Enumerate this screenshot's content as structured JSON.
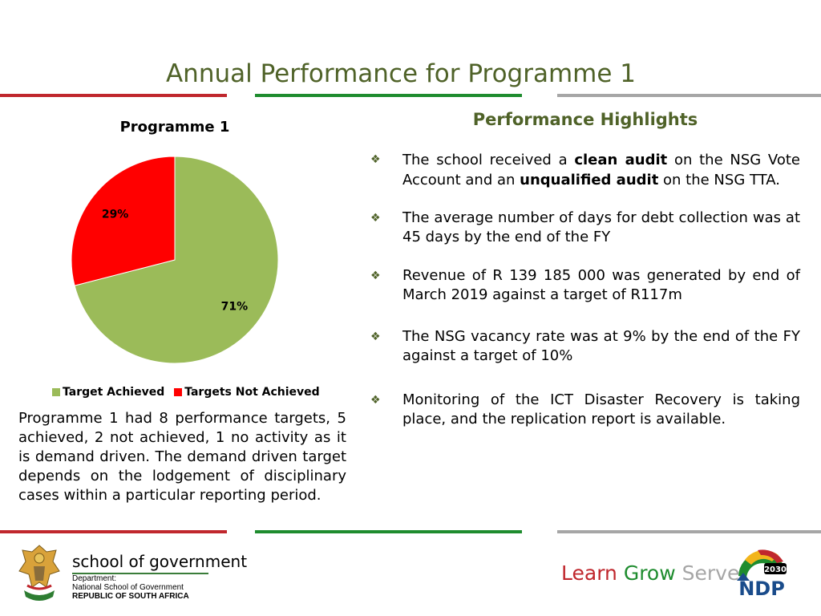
{
  "slide": {
    "title": "Annual Performance for Programme 1"
  },
  "colors": {
    "title": "#4f6228",
    "bar_red": "#c0272d",
    "bar_green": "#1e8c2e",
    "bar_gray": "#a6a6a6",
    "achieved": "#9bbb59",
    "not_achieved": "#ff0000"
  },
  "chart_data": {
    "type": "pie",
    "title": "Programme 1",
    "categories": [
      "Target Achieved",
      "Targets Not Achieved"
    ],
    "values": [
      71,
      29
    ],
    "labels": [
      "71%",
      "29%"
    ],
    "colors": [
      "#9bbb59",
      "#ff0000"
    ],
    "legend": "bottom"
  },
  "summary": "Programme 1 had 8 performance targets, 5 achieved, 2 not achieved, 1 no activity as it is demand driven. The demand driven target depends on the lodgement of disciplinary cases within a particular reporting period.",
  "highlights": {
    "title": "Performance Highlights",
    "items": [
      {
        "parts": [
          [
            "The school received a ",
            false
          ],
          [
            "clean audit",
            true
          ],
          [
            " on the NSG Vote Account and an ",
            false
          ],
          [
            "unqualified audit",
            true
          ],
          [
            " on the NSG TTA.",
            false
          ]
        ]
      },
      {
        "parts": [
          [
            "The average number of days for debt collection was at 45 days by the end of the FY",
            false
          ]
        ]
      },
      {
        "parts": [
          [
            "Revenue of R 139 185 000 was generated by end of March 2019 against a target of R117m",
            false
          ]
        ]
      },
      {
        "parts": [
          [
            "The NSG vacancy rate was at 9% by the end of the FY against a target of 10%",
            false
          ]
        ]
      },
      {
        "parts": [
          [
            "Monitoring of the ICT Disaster Recovery is taking place, and the replication report is available.",
            false
          ]
        ]
      }
    ]
  },
  "footer": {
    "school_name": "school of government",
    "dept_line1": "Department:",
    "dept_line2": "National School of Government",
    "dept_line3": "REPUBLIC OF SOUTH AFRICA",
    "tagline": {
      "learn": "Learn",
      "grow": "Grow",
      "serve": "Serve"
    },
    "ndp_year": "2030",
    "ndp_text": "NDP"
  },
  "icons": {
    "bullet": "diamond-bullet-icon",
    "coat_of_arms": "coat-of-arms-icon",
    "ndp_logo": "ndp-logo-icon"
  }
}
